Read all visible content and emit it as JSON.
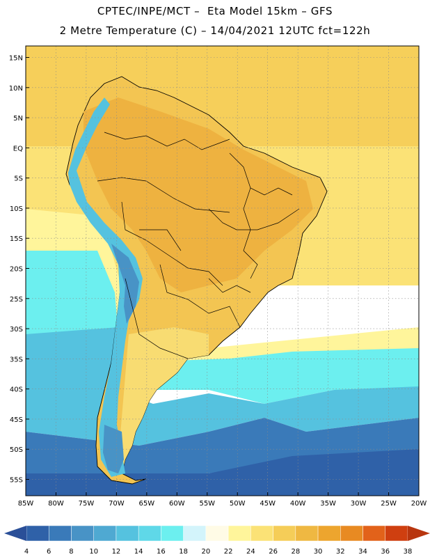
{
  "header": {
    "title_line1": "CPTEC/INPE/MCT –  Eta Model 15km – GFS",
    "title_line2": "2 Metre Temperature (C) – 14/04/2021 12UTC fct=122h"
  },
  "axes": {
    "lat_labels": [
      "15N",
      "10N",
      "5N",
      "EQ",
      "5S",
      "10S",
      "15S",
      "20S",
      "25S",
      "30S",
      "35S",
      "40S",
      "45S",
      "50S",
      "55S"
    ],
    "lon_labels": [
      "85W",
      "80W",
      "75W",
      "70W",
      "65W",
      "60W",
      "55W",
      "50W",
      "45W",
      "40W",
      "35W",
      "30W",
      "25W",
      "20W"
    ]
  },
  "colorbar": {
    "labels": [
      "4",
      "6",
      "8",
      "10",
      "12",
      "14",
      "16",
      "18",
      "20",
      "22",
      "24",
      "26",
      "28",
      "30",
      "32",
      "34",
      "36",
      "38"
    ],
    "colors": [
      "#2f61a8",
      "#3a7ab9",
      "#4893c6",
      "#4fa9d2",
      "#55c2df",
      "#5fd8e8",
      "#6cefef",
      "#d3f4fb",
      "#fffbe6",
      "#fff59b",
      "#fbe276",
      "#f5cd58",
      "#efb842",
      "#eda52e",
      "#e88a22",
      "#e2621a",
      "#cf3f10"
    ],
    "under_color": "#2a4f98",
    "over_color": "#b8360f"
  },
  "map": {
    "land_colors": {
      "tropical": "#eeb240",
      "warm": "#f3c552",
      "mild": "#f8dc72",
      "andes_cold": "#55c2df",
      "andes_colder": "#4893c6"
    },
    "ocean_colors": {
      "north": "#f6cf5a",
      "equatorial": "#fbe276",
      "subtropical": "#fff59b",
      "cool": "#6cefef",
      "colder": "#55c2df",
      "cold": "#3a7ab9",
      "coldest": "#2f61a8"
    }
  }
}
